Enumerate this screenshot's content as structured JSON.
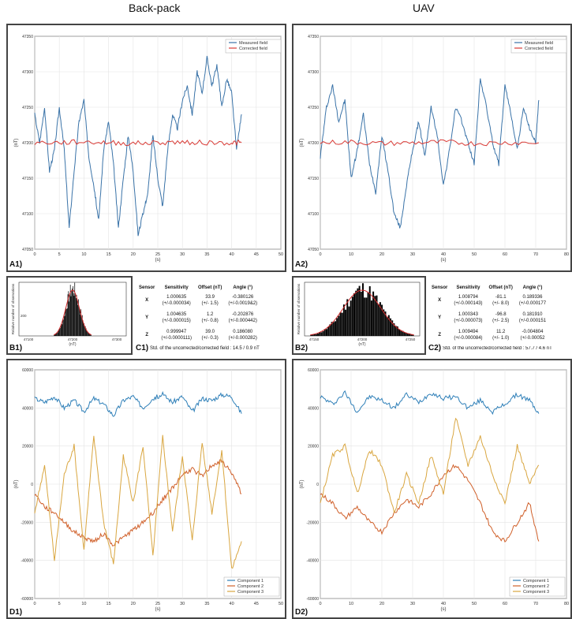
{
  "titles": {
    "left": "Back-pack",
    "right": "UAV"
  },
  "labels": {
    "A1": "A1)",
    "A2": "A2)",
    "B1": "B1)",
    "B2": "B2)",
    "C1": "C1)",
    "C2": "C2)",
    "D1": "D1)",
    "D2": "D2)"
  },
  "table_left": {
    "headers": [
      "Sensor",
      "Sensitivity",
      "Offset (nT)",
      "Angle (°)"
    ],
    "rows": [
      {
        "sensor": "X",
        "sens": "1.000635",
        "sens_err": "(+/-0.000034)",
        "off": "33.9",
        "off_err": "(+/- 1.5)",
        "ang": "-0.380126",
        "ang_err": "(+/-0.0019&2)"
      },
      {
        "sensor": "Y",
        "sens": "1.004635",
        "sens_err": "(+/-0.000015)",
        "off": "1.2",
        "off_err": "(+/- 0.8)",
        "ang": "-0.202876",
        "ang_err": "(+/-0.000442)"
      },
      {
        "sensor": "Z",
        "sens": "0.999947",
        "sens_err": "(+/-0.0000111)",
        "off": "39.0",
        "off_err": "(+/- 0.3)",
        "ang": "0.186080",
        "ang_err": "(+/-0.000282)"
      }
    ],
    "note": "Std. of the uncorrected/corrected field : 14.5 / 0.9 nT"
  },
  "table_right": {
    "headers": [
      "Sensor",
      "Sensitivity",
      "Offset (nT)",
      "Angle (°)"
    ],
    "rows": [
      {
        "sensor": "X",
        "sens": "1.008794",
        "sens_err": "(+/-0.000143)",
        "off": "-81.1",
        "off_err": "(+/- 8.0)",
        "ang": "0.189336",
        "ang_err": "(+/-0.000177"
      },
      {
        "sensor": "Y",
        "sens": "1.000343",
        "sens_err": "(+/-0.000073)",
        "off": "-96.8",
        "off_err": "(+/- 2.5)",
        "ang": "0.181910",
        "ang_err": "(+/-0.000151"
      },
      {
        "sensor": "Z",
        "sens": "1.009494",
        "sens_err": "(+/-0.000084)",
        "off": "11.2",
        "off_err": "(+/- 1.0)",
        "ang": "-0.004804",
        "ang_err": "(+/-0.00052"
      }
    ],
    "note": "Std. of the uncorrected/corrected field : 57.7 / 4.6 nT"
  },
  "colors": {
    "measured": "#3a73a8",
    "corrected": "#d93a35",
    "comp1": "#2e7fb8",
    "comp2": "#d0602a",
    "comp3": "#d9a640",
    "hist": "#000000",
    "fit": "#d12a2a"
  },
  "chart_data": [
    {
      "id": "A1",
      "type": "line",
      "xlabel": "(s)",
      "ylabel": "(nT)",
      "xlim": [
        0,
        50
      ],
      "ylim": [
        47050,
        47350
      ],
      "xticks": [
        "0",
        "5",
        "10",
        "15",
        "20",
        "25",
        "30",
        "35",
        "40",
        "45",
        "50"
      ],
      "yticks": [
        "47050",
        "47100",
        "47150",
        "47200",
        "47250",
        "47300",
        "47350"
      ],
      "legend": [
        "Measured field",
        "Corrected field"
      ],
      "series": [
        {
          "name": "Measured field",
          "color": "#3a73a8",
          "x": [
            0,
            1,
            2,
            3,
            4,
            5,
            6,
            7,
            8,
            9,
            10,
            11,
            12,
            13,
            14,
            15,
            16,
            17,
            18,
            19,
            20,
            21,
            22,
            23,
            24,
            25,
            26,
            27,
            28,
            29,
            30,
            31,
            32,
            33,
            34,
            35,
            36,
            37,
            38,
            39,
            40,
            41,
            42
          ],
          "y": [
            47240,
            47200,
            47250,
            47160,
            47190,
            47250,
            47190,
            47080,
            47160,
            47230,
            47260,
            47180,
            47140,
            47090,
            47190,
            47230,
            47170,
            47080,
            47150,
            47210,
            47160,
            47070,
            47100,
            47130,
            47210,
            47150,
            47110,
            47190,
            47240,
            47220,
            47260,
            47280,
            47240,
            47300,
            47270,
            47320,
            47280,
            47310,
            47250,
            47290,
            47270,
            47190,
            47240
          ]
        },
        {
          "name": "Corrected field",
          "color": "#d93a35",
          "x": [
            0,
            5,
            10,
            15,
            20,
            25,
            30,
            35,
            40,
            42
          ],
          "y": [
            47200,
            47200,
            47201,
            47200,
            47199,
            47200,
            47201,
            47200,
            47200,
            47200
          ]
        }
      ]
    },
    {
      "id": "A2",
      "type": "line",
      "xlabel": "(s)",
      "ylabel": "(nT)",
      "xlim": [
        0,
        80
      ],
      "ylim": [
        47050,
        47350
      ],
      "xticks": [
        "0",
        "10",
        "20",
        "30",
        "40",
        "50",
        "60",
        "70",
        "80"
      ],
      "yticks": [
        "47050",
        "47100",
        "47150",
        "47200",
        "47250",
        "47300",
        "47350"
      ],
      "legend": [
        "Measured field",
        "Corrected field"
      ],
      "series": [
        {
          "name": "Measured field",
          "color": "#3a73a8",
          "x": [
            0,
            2,
            4,
            6,
            8,
            10,
            12,
            14,
            16,
            18,
            20,
            22,
            24,
            26,
            28,
            30,
            32,
            34,
            36,
            38,
            40,
            42,
            44,
            46,
            48,
            50,
            52,
            54,
            56,
            58,
            60,
            62,
            64,
            66,
            68,
            70,
            71
          ],
          "y": [
            47180,
            47250,
            47280,
            47230,
            47260,
            47150,
            47190,
            47240,
            47170,
            47130,
            47210,
            47160,
            47100,
            47080,
            47140,
            47190,
            47230,
            47180,
            47250,
            47210,
            47140,
            47190,
            47250,
            47230,
            47200,
            47170,
            47290,
            47250,
            47200,
            47170,
            47280,
            47240,
            47190,
            47250,
            47220,
            47200,
            47260
          ]
        },
        {
          "name": "Corrected field",
          "color": "#d93a35",
          "x": [
            0,
            10,
            20,
            30,
            40,
            50,
            60,
            71
          ],
          "y": [
            47200,
            47201,
            47199,
            47200,
            47201,
            47199,
            47200,
            47200
          ]
        }
      ]
    },
    {
      "id": "B1",
      "type": "bar",
      "xlabel": "(nT)",
      "ylabel": "Relative number of observations",
      "xticks": [
        "47100",
        "47200",
        "47300"
      ],
      "yticks": [
        "200"
      ]
    },
    {
      "id": "B2",
      "type": "bar",
      "xlabel": "(nT)",
      "ylabel": "Relative number of observations",
      "xticks": [
        "47150",
        "47200",
        "47250"
      ]
    },
    {
      "id": "D1",
      "type": "line",
      "xlabel": "(s)",
      "ylabel": "(nT)",
      "xlim": [
        0,
        50
      ],
      "ylim": [
        -60000,
        60000
      ],
      "xticks": [
        "0",
        "5",
        "10",
        "15",
        "20",
        "25",
        "30",
        "35",
        "40",
        "45",
        "50"
      ],
      "yticks": [
        "-60000",
        "-40000",
        "-20000",
        "0",
        "20000",
        "40000",
        "60000"
      ],
      "legend": [
        "Component 1",
        "Component 2",
        "Component 3"
      ],
      "series": [
        {
          "name": "Component 1",
          "color": "#2e7fb8",
          "x": [
            0,
            2,
            4,
            6,
            8,
            10,
            12,
            14,
            16,
            18,
            20,
            22,
            24,
            26,
            28,
            30,
            32,
            34,
            36,
            38,
            40,
            42
          ],
          "y": [
            45000,
            43000,
            46000,
            40000,
            44000,
            38000,
            45000,
            42000,
            36000,
            44000,
            46000,
            40000,
            45000,
            47000,
            43000,
            46000,
            38000,
            45000,
            44000,
            47000,
            46000,
            37000
          ]
        },
        {
          "name": "Component 2",
          "color": "#d0602a",
          "x": [
            0,
            2,
            4,
            6,
            8,
            10,
            12,
            14,
            16,
            18,
            20,
            22,
            24,
            26,
            28,
            30,
            32,
            34,
            36,
            38,
            40,
            42
          ],
          "y": [
            -5000,
            -12000,
            -15000,
            -20000,
            -25000,
            -28000,
            -30000,
            -26000,
            -32000,
            -28000,
            -24000,
            -20000,
            -15000,
            -8000,
            -2000,
            5000,
            8000,
            4000,
            10000,
            12000,
            6000,
            -5000
          ]
        },
        {
          "name": "Component 3",
          "color": "#d9a640",
          "x": [
            0,
            2,
            4,
            6,
            8,
            10,
            12,
            14,
            16,
            18,
            20,
            22,
            24,
            26,
            28,
            30,
            32,
            34,
            36,
            38,
            40,
            42
          ],
          "y": [
            -15000,
            10000,
            -40000,
            5000,
            20000,
            -35000,
            25000,
            -20000,
            -42000,
            15000,
            -10000,
            20000,
            -38000,
            25000,
            -25000,
            15000,
            -30000,
            22000,
            -15000,
            18000,
            -45000,
            -30000
          ]
        }
      ]
    },
    {
      "id": "D2",
      "type": "line",
      "xlabel": "(s)",
      "ylabel": "(nT)",
      "xlim": [
        0,
        80
      ],
      "ylim": [
        -60000,
        60000
      ],
      "xticks": [
        "0",
        "10",
        "20",
        "30",
        "40",
        "50",
        "60",
        "70",
        "80"
      ],
      "yticks": [
        "-60000",
        "-40000",
        "-20000",
        "0",
        "20000",
        "40000",
        "60000"
      ],
      "legend": [
        "Component 1",
        "Component 2",
        "Component 3"
      ],
      "series": [
        {
          "name": "Component 1",
          "color": "#2e7fb8",
          "x": [
            0,
            4,
            8,
            12,
            16,
            20,
            24,
            28,
            32,
            36,
            40,
            44,
            48,
            52,
            56,
            60,
            64,
            68,
            71
          ],
          "y": [
            46000,
            42000,
            48000,
            38000,
            46000,
            44000,
            40000,
            47000,
            43000,
            48000,
            45000,
            46000,
            40000,
            44000,
            38000,
            42000,
            47000,
            44000,
            37000
          ]
        },
        {
          "name": "Component 2",
          "color": "#d0602a",
          "x": [
            0,
            4,
            8,
            12,
            16,
            20,
            24,
            28,
            32,
            36,
            40,
            44,
            48,
            52,
            56,
            60,
            64,
            68,
            71
          ],
          "y": [
            -5000,
            -10000,
            -18000,
            -12000,
            -20000,
            -25000,
            -15000,
            -8000,
            -12000,
            -5000,
            5000,
            10000,
            2000,
            -10000,
            -25000,
            -30000,
            -20000,
            -10000,
            -30000
          ]
        },
        {
          "name": "Component 3",
          "color": "#d9a640",
          "x": [
            0,
            4,
            8,
            12,
            16,
            20,
            24,
            28,
            32,
            36,
            40,
            44,
            48,
            52,
            56,
            60,
            64,
            68,
            71
          ],
          "y": [
            -10000,
            15000,
            20000,
            -5000,
            18000,
            10000,
            -15000,
            5000,
            -10000,
            15000,
            -5000,
            35000,
            10000,
            25000,
            5000,
            -10000,
            20000,
            0,
            10000
          ]
        }
      ]
    }
  ]
}
